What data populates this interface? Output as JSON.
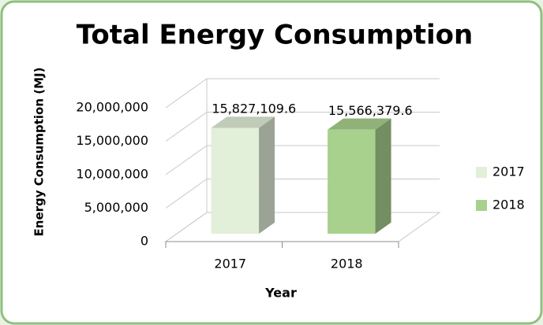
{
  "chart_data": {
    "type": "bar3d",
    "title": "Total Energy Consumption",
    "x_label": "Year",
    "y_label": "Energy Consumption (MJ)",
    "categories": [
      "2017",
      "2018"
    ],
    "values": [
      15827109.6,
      15566379.6
    ],
    "value_labels": [
      "15,827,109.6",
      "15,566,379.6"
    ],
    "colors": [
      "#e2efd9",
      "#a9d18e"
    ],
    "ylim": [
      0,
      20000000
    ],
    "yticks": [
      0,
      {
        "value": 5000000,
        "label": "5,000,000"
      },
      {
        "value": 10000000,
        "label": "10,000,000"
      },
      {
        "value": 15000000,
        "label": "15,000,000"
      },
      {
        "value": 20000000,
        "label": "20,000,000"
      }
    ],
    "grid": true,
    "legend": "right"
  }
}
